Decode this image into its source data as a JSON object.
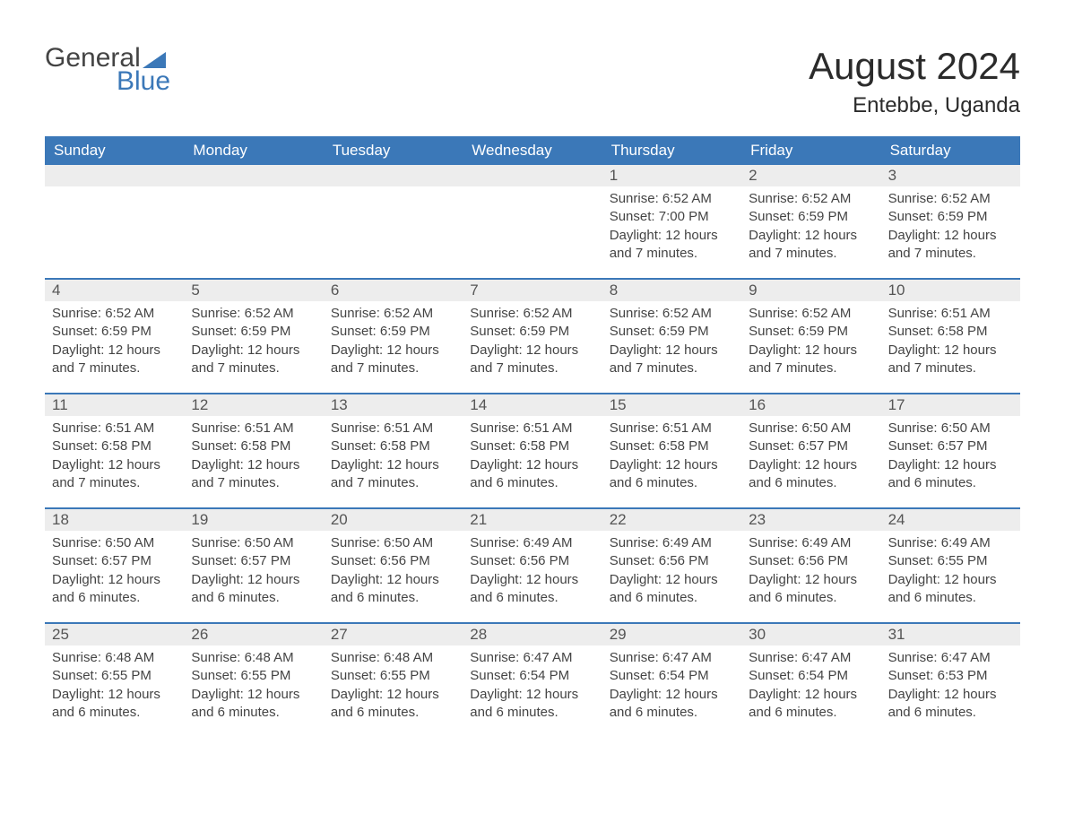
{
  "logo": {
    "text_top": "General",
    "text_bottom": "Blue"
  },
  "title": "August 2024",
  "location": "Entebbe, Uganda",
  "colors": {
    "header_bg": "#3b78b8",
    "header_text": "#ffffff",
    "daynum_bg": "#ededed",
    "row_border": "#3b78b8",
    "body_text": "#444444",
    "page_bg": "#ffffff"
  },
  "weekdays": [
    "Sunday",
    "Monday",
    "Tuesday",
    "Wednesday",
    "Thursday",
    "Friday",
    "Saturday"
  ],
  "weeks": [
    [
      {
        "empty": true
      },
      {
        "empty": true
      },
      {
        "empty": true
      },
      {
        "empty": true
      },
      {
        "day": "1",
        "sunrise": "Sunrise: 6:52 AM",
        "sunset": "Sunset: 7:00 PM",
        "daylight": "Daylight: 12 hours and 7 minutes."
      },
      {
        "day": "2",
        "sunrise": "Sunrise: 6:52 AM",
        "sunset": "Sunset: 6:59 PM",
        "daylight": "Daylight: 12 hours and 7 minutes."
      },
      {
        "day": "3",
        "sunrise": "Sunrise: 6:52 AM",
        "sunset": "Sunset: 6:59 PM",
        "daylight": "Daylight: 12 hours and 7 minutes."
      }
    ],
    [
      {
        "day": "4",
        "sunrise": "Sunrise: 6:52 AM",
        "sunset": "Sunset: 6:59 PM",
        "daylight": "Daylight: 12 hours and 7 minutes."
      },
      {
        "day": "5",
        "sunrise": "Sunrise: 6:52 AM",
        "sunset": "Sunset: 6:59 PM",
        "daylight": "Daylight: 12 hours and 7 minutes."
      },
      {
        "day": "6",
        "sunrise": "Sunrise: 6:52 AM",
        "sunset": "Sunset: 6:59 PM",
        "daylight": "Daylight: 12 hours and 7 minutes."
      },
      {
        "day": "7",
        "sunrise": "Sunrise: 6:52 AM",
        "sunset": "Sunset: 6:59 PM",
        "daylight": "Daylight: 12 hours and 7 minutes."
      },
      {
        "day": "8",
        "sunrise": "Sunrise: 6:52 AM",
        "sunset": "Sunset: 6:59 PM",
        "daylight": "Daylight: 12 hours and 7 minutes."
      },
      {
        "day": "9",
        "sunrise": "Sunrise: 6:52 AM",
        "sunset": "Sunset: 6:59 PM",
        "daylight": "Daylight: 12 hours and 7 minutes."
      },
      {
        "day": "10",
        "sunrise": "Sunrise: 6:51 AM",
        "sunset": "Sunset: 6:58 PM",
        "daylight": "Daylight: 12 hours and 7 minutes."
      }
    ],
    [
      {
        "day": "11",
        "sunrise": "Sunrise: 6:51 AM",
        "sunset": "Sunset: 6:58 PM",
        "daylight": "Daylight: 12 hours and 7 minutes."
      },
      {
        "day": "12",
        "sunrise": "Sunrise: 6:51 AM",
        "sunset": "Sunset: 6:58 PM",
        "daylight": "Daylight: 12 hours and 7 minutes."
      },
      {
        "day": "13",
        "sunrise": "Sunrise: 6:51 AM",
        "sunset": "Sunset: 6:58 PM",
        "daylight": "Daylight: 12 hours and 7 minutes."
      },
      {
        "day": "14",
        "sunrise": "Sunrise: 6:51 AM",
        "sunset": "Sunset: 6:58 PM",
        "daylight": "Daylight: 12 hours and 6 minutes."
      },
      {
        "day": "15",
        "sunrise": "Sunrise: 6:51 AM",
        "sunset": "Sunset: 6:58 PM",
        "daylight": "Daylight: 12 hours and 6 minutes."
      },
      {
        "day": "16",
        "sunrise": "Sunrise: 6:50 AM",
        "sunset": "Sunset: 6:57 PM",
        "daylight": "Daylight: 12 hours and 6 minutes."
      },
      {
        "day": "17",
        "sunrise": "Sunrise: 6:50 AM",
        "sunset": "Sunset: 6:57 PM",
        "daylight": "Daylight: 12 hours and 6 minutes."
      }
    ],
    [
      {
        "day": "18",
        "sunrise": "Sunrise: 6:50 AM",
        "sunset": "Sunset: 6:57 PM",
        "daylight": "Daylight: 12 hours and 6 minutes."
      },
      {
        "day": "19",
        "sunrise": "Sunrise: 6:50 AM",
        "sunset": "Sunset: 6:57 PM",
        "daylight": "Daylight: 12 hours and 6 minutes."
      },
      {
        "day": "20",
        "sunrise": "Sunrise: 6:50 AM",
        "sunset": "Sunset: 6:56 PM",
        "daylight": "Daylight: 12 hours and 6 minutes."
      },
      {
        "day": "21",
        "sunrise": "Sunrise: 6:49 AM",
        "sunset": "Sunset: 6:56 PM",
        "daylight": "Daylight: 12 hours and 6 minutes."
      },
      {
        "day": "22",
        "sunrise": "Sunrise: 6:49 AM",
        "sunset": "Sunset: 6:56 PM",
        "daylight": "Daylight: 12 hours and 6 minutes."
      },
      {
        "day": "23",
        "sunrise": "Sunrise: 6:49 AM",
        "sunset": "Sunset: 6:56 PM",
        "daylight": "Daylight: 12 hours and 6 minutes."
      },
      {
        "day": "24",
        "sunrise": "Sunrise: 6:49 AM",
        "sunset": "Sunset: 6:55 PM",
        "daylight": "Daylight: 12 hours and 6 minutes."
      }
    ],
    [
      {
        "day": "25",
        "sunrise": "Sunrise: 6:48 AM",
        "sunset": "Sunset: 6:55 PM",
        "daylight": "Daylight: 12 hours and 6 minutes."
      },
      {
        "day": "26",
        "sunrise": "Sunrise: 6:48 AM",
        "sunset": "Sunset: 6:55 PM",
        "daylight": "Daylight: 12 hours and 6 minutes."
      },
      {
        "day": "27",
        "sunrise": "Sunrise: 6:48 AM",
        "sunset": "Sunset: 6:55 PM",
        "daylight": "Daylight: 12 hours and 6 minutes."
      },
      {
        "day": "28",
        "sunrise": "Sunrise: 6:47 AM",
        "sunset": "Sunset: 6:54 PM",
        "daylight": "Daylight: 12 hours and 6 minutes."
      },
      {
        "day": "29",
        "sunrise": "Sunrise: 6:47 AM",
        "sunset": "Sunset: 6:54 PM",
        "daylight": "Daylight: 12 hours and 6 minutes."
      },
      {
        "day": "30",
        "sunrise": "Sunrise: 6:47 AM",
        "sunset": "Sunset: 6:54 PM",
        "daylight": "Daylight: 12 hours and 6 minutes."
      },
      {
        "day": "31",
        "sunrise": "Sunrise: 6:47 AM",
        "sunset": "Sunset: 6:53 PM",
        "daylight": "Daylight: 12 hours and 6 minutes."
      }
    ]
  ]
}
